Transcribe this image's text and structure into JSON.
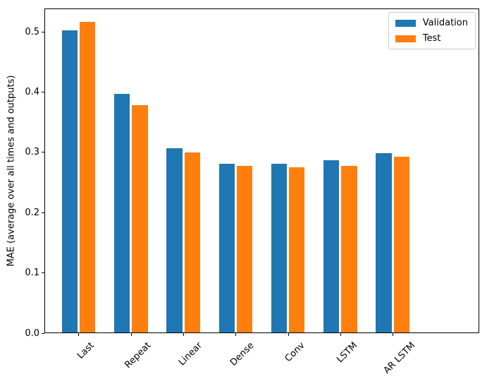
{
  "chart_data": {
    "type": "bar",
    "title": "",
    "xlabel": "",
    "ylabel": "MAE (average over all times and outputs)",
    "categories": [
      "Last",
      "Repeat",
      "Linear",
      "Dense",
      "Conv",
      "LSTM",
      "AR LSTM"
    ],
    "series": [
      {
        "name": "Validation",
        "color": "#1f77b4",
        "values": [
          0.501,
          0.396,
          0.306,
          0.28,
          0.28,
          0.286,
          0.298
        ]
      },
      {
        "name": "Test",
        "color": "#ff7f0e",
        "values": [
          0.515,
          0.377,
          0.299,
          0.276,
          0.274,
          0.277,
          0.292
        ]
      }
    ],
    "ylim": [
      0,
      0.539
    ],
    "yticks": [
      0.0,
      0.1,
      0.2,
      0.3,
      0.4,
      0.5
    ],
    "ytick_labels": [
      "0.0",
      "0.1",
      "0.2",
      "0.3",
      "0.4",
      "0.5"
    ],
    "xtick_rotation_deg": 45,
    "grid": false,
    "legend": {
      "position": "upper right",
      "entries": [
        "Validation",
        "Test"
      ]
    },
    "bar_width_units": 0.3,
    "bar_offset_units": 0.17,
    "x_margin_units": 0.652,
    "spine_color": "#000000",
    "background_color": "#ffffff"
  }
}
